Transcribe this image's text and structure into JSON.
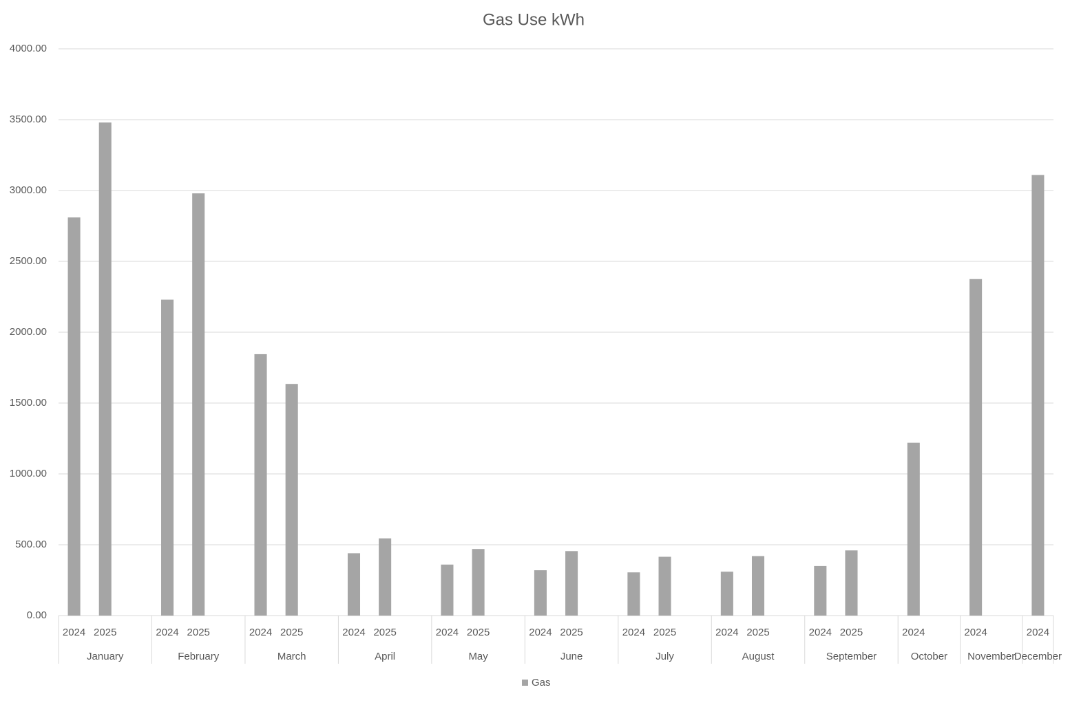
{
  "chart_data": {
    "type": "bar",
    "title": "Gas Use kWh",
    "series": [
      {
        "name": "Gas",
        "color": "#a5a5a5",
        "values": [
          2810,
          3480,
          null,
          2230,
          2980,
          null,
          1845,
          1635,
          null,
          440,
          545,
          null,
          360,
          470,
          null,
          320,
          455,
          null,
          305,
          415,
          null,
          310,
          420,
          null,
          350,
          460,
          null,
          1220,
          null,
          2375,
          null,
          3110
        ]
      }
    ],
    "groups": [
      {
        "name": "January",
        "categories": [
          "2024",
          "2025",
          null
        ]
      },
      {
        "name": "February",
        "categories": [
          "2024",
          "2025",
          null
        ]
      },
      {
        "name": "March",
        "categories": [
          "2024",
          "2025",
          null
        ]
      },
      {
        "name": "April",
        "categories": [
          "2024",
          "2025",
          null
        ]
      },
      {
        "name": "May",
        "categories": [
          "2024",
          "2025",
          null
        ]
      },
      {
        "name": "June",
        "categories": [
          "2024",
          "2025",
          null
        ]
      },
      {
        "name": "July",
        "categories": [
          "2024",
          "2025",
          null
        ]
      },
      {
        "name": "August",
        "categories": [
          "2024",
          "2025",
          null
        ]
      },
      {
        "name": "September",
        "categories": [
          "2024",
          "2025",
          null
        ]
      },
      {
        "name": "October",
        "categories": [
          "2024",
          null
        ]
      },
      {
        "name": "November",
        "categories": [
          "2024",
          null
        ]
      },
      {
        "name": "December",
        "categories": [
          "2024"
        ]
      }
    ],
    "ylim": [
      0,
      4000
    ],
    "yticks": [
      {
        "value": 0,
        "label": "0.00"
      },
      {
        "value": 500,
        "label": "500.00"
      },
      {
        "value": 1000,
        "label": "1000.00"
      },
      {
        "value": 1500,
        "label": "1500.00"
      },
      {
        "value": 2000,
        "label": "2000.00"
      },
      {
        "value": 2500,
        "label": "2500.00"
      },
      {
        "value": 3000,
        "label": "3000.00"
      },
      {
        "value": 3500,
        "label": "3500.00"
      },
      {
        "value": 4000,
        "label": "4000.00"
      }
    ],
    "grid": true,
    "legend": "bottom"
  }
}
